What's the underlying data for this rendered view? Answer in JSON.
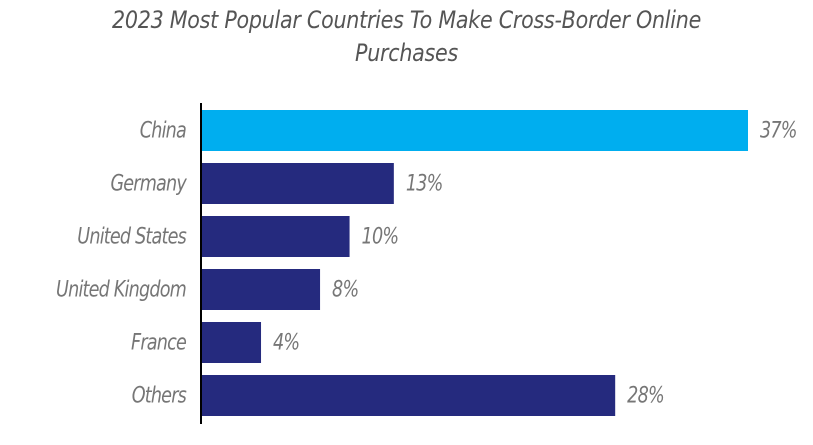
{
  "chart_data": {
    "type": "bar",
    "orientation": "horizontal",
    "title_lines": [
      "2023 Most Popular Countries To Make Cross-Border Online",
      "Purchases"
    ],
    "categories": [
      "China",
      "Germany",
      "United States",
      "United Kingdom",
      "France",
      "Others"
    ],
    "values": [
      37,
      13,
      10,
      8,
      4,
      28
    ],
    "value_labels": [
      "37%",
      "13%",
      "10%",
      "8%",
      "4%",
      "28%"
    ],
    "unit": "%",
    "xlim": [
      0,
      37
    ],
    "highlight_index": 0,
    "colors": {
      "highlight": "#00AEEF",
      "bar": "#252A7E",
      "axis": "#000000",
      "label": "#767676",
      "title": "#555555"
    },
    "grid": false,
    "legend": "none"
  }
}
